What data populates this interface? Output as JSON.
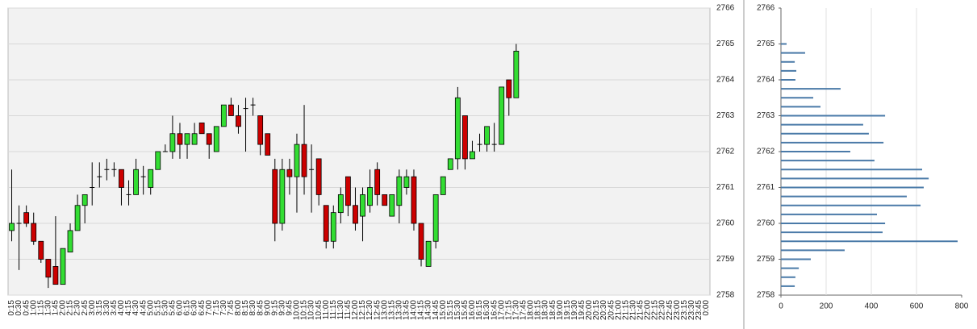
{
  "chart_data": [
    {
      "type": "candlestick",
      "categories": [
        "0:15",
        "0:30",
        "0:45",
        "1:00",
        "1:15",
        "1:30",
        "1:45",
        "2:00",
        "2:15",
        "2:30",
        "2:45",
        "3:00",
        "3:15",
        "3:30",
        "3:45",
        "4:00",
        "4:15",
        "4:30",
        "4:45",
        "5:00",
        "5:15",
        "5:30",
        "5:45",
        "6:00",
        "6:15",
        "6:30",
        "6:45",
        "7:00",
        "7:15",
        "7:30",
        "7:45",
        "8:00",
        "8:15",
        "8:30",
        "8:45",
        "9:00",
        "9:15",
        "9:30",
        "9:45",
        "10:00",
        "10:15",
        "10:30",
        "10:45",
        "11:00",
        "11:15",
        "11:30",
        "11:45",
        "12:00",
        "12:15",
        "12:30",
        "12:45",
        "13:00",
        "13:15",
        "13:30",
        "13:45",
        "14:00",
        "14:15",
        "14:30",
        "14:45",
        "15:00",
        "15:15",
        "15:30",
        "15:45",
        "16:00",
        "16:15",
        "16:30",
        "16:45",
        "17:00",
        "17:15",
        "17:30",
        "17:45",
        "18:00",
        "18:15",
        "18:30",
        "18:45",
        "19:00",
        "19:15",
        "19:30",
        "19:45",
        "20:00",
        "20:15",
        "20:30",
        "20:45",
        "21:00",
        "21:15",
        "21:30",
        "21:45",
        "22:00",
        "22:15",
        "22:30",
        "22:45",
        "23:00",
        "23:15",
        "23:30",
        "23:45",
        "0:00"
      ],
      "open": [
        2759.8,
        2760.0,
        2760.3,
        2760.0,
        2759.5,
        2759.0,
        2758.8,
        2758.3,
        2759.2,
        2759.8,
        2760.5,
        2761.0,
        2761.3,
        2761.5,
        2761.5,
        2761.5,
        2760.8,
        2760.8,
        2761.3,
        2761.0,
        2761.5,
        2762.0,
        2762.0,
        2762.5,
        2762.2,
        2762.2,
        2762.8,
        2762.5,
        2762.0,
        2762.7,
        2763.3,
        2763.0,
        2763.2,
        2763.3,
        2763.0,
        2762.5,
        2761.5,
        2760.0,
        2761.5,
        2761.3,
        2762.2,
        2761.5,
        2761.8,
        2760.5,
        2759.5,
        2760.3,
        2761.3,
        2760.5,
        2760.2,
        2760.5,
        2761.5,
        2760.8,
        2760.2,
        2760.5,
        2761.0,
        2761.3,
        2760.0,
        2758.8,
        2759.5,
        2760.8,
        2761.5,
        2761.8,
        2763.0,
        2761.8,
        2762.2,
        2762.2,
        2762.2,
        2762.2,
        2764.0,
        2763.5,
        null,
        null,
        null,
        null,
        null,
        null,
        null,
        null,
        null,
        null,
        null,
        null,
        null,
        null,
        null,
        null,
        null,
        null,
        null,
        null,
        null,
        null,
        null,
        null,
        null,
        null
      ],
      "high": [
        2761.5,
        2760.5,
        2760.5,
        2760.3,
        2759.5,
        2759.0,
        2760.2,
        2759.3,
        2760.0,
        2760.8,
        2760.8,
        2761.7,
        2761.7,
        2761.8,
        2761.7,
        2761.5,
        2761.2,
        2761.8,
        2761.6,
        2761.5,
        2762.0,
        2762.2,
        2763.0,
        2762.8,
        2762.5,
        2762.8,
        2762.8,
        2762.5,
        2762.7,
        2763.3,
        2763.5,
        2763.3,
        2763.5,
        2763.5,
        2763.0,
        2762.5,
        2761.8,
        2761.8,
        2761.8,
        2762.5,
        2763.3,
        2762.2,
        2761.8,
        2760.5,
        2760.5,
        2761.0,
        2761.3,
        2761.0,
        2761.0,
        2761.5,
        2761.7,
        2760.8,
        2760.8,
        2761.5,
        2761.5,
        2761.5,
        2760.0,
        2759.5,
        2760.8,
        2761.3,
        2761.8,
        2763.8,
        2763.0,
        2762.3,
        2762.5,
        2762.7,
        2762.8,
        2763.8,
        2764.0,
        2765.0,
        null,
        null,
        null,
        null,
        null,
        null,
        null,
        null,
        null,
        null,
        null,
        null,
        null,
        null,
        null,
        null,
        null,
        null,
        null,
        null,
        null,
        null,
        null,
        null,
        null,
        null
      ],
      "low": [
        2759.5,
        2758.7,
        2759.9,
        2759.4,
        2758.9,
        2758.2,
        2758.3,
        2758.3,
        2759.2,
        2759.8,
        2760.0,
        2760.5,
        2761.0,
        2761.2,
        2761.3,
        2760.5,
        2760.5,
        2760.8,
        2760.8,
        2760.8,
        2761.5,
        2762.0,
        2761.8,
        2761.8,
        2761.8,
        2762.2,
        2762.5,
        2761.8,
        2762.0,
        2762.7,
        2763.0,
        2762.5,
        2762.0,
        2763.0,
        2761.9,
        2761.9,
        2759.5,
        2759.8,
        2760.8,
        2760.3,
        2760.8,
        2760.3,
        2760.5,
        2759.3,
        2759.3,
        2760.0,
        2760.2,
        2759.8,
        2759.5,
        2760.3,
        2760.5,
        2760.5,
        2760.2,
        2760.0,
        2760.8,
        2759.8,
        2758.8,
        2758.8,
        2759.3,
        2760.8,
        2761.5,
        2761.5,
        2761.5,
        2761.8,
        2762.0,
        2762.0,
        2762.0,
        2762.2,
        2763.0,
        2763.5,
        null,
        null,
        null,
        null,
        null,
        null,
        null,
        null,
        null,
        null,
        null,
        null,
        null,
        null,
        null,
        null,
        null,
        null,
        null,
        null,
        null,
        null,
        null,
        null,
        null,
        null
      ],
      "close": [
        2760.0,
        2760.0,
        2760.0,
        2759.5,
        2759.0,
        2758.5,
        2758.3,
        2759.3,
        2759.8,
        2760.5,
        2760.8,
        2761.0,
        2761.3,
        2761.5,
        2761.5,
        2761.0,
        2760.8,
        2761.5,
        2761.3,
        2761.5,
        2762.0,
        2762.0,
        2762.5,
        2762.2,
        2762.5,
        2762.5,
        2762.5,
        2762.2,
        2762.7,
        2763.3,
        2763.0,
        2762.7,
        2763.2,
        2763.3,
        2762.2,
        2761.9,
        2760.0,
        2761.5,
        2761.3,
        2762.2,
        2761.3,
        2761.5,
        2760.8,
        2759.5,
        2760.3,
        2760.8,
        2760.5,
        2760.0,
        2760.8,
        2761.0,
        2760.8,
        2760.5,
        2760.8,
        2761.3,
        2761.3,
        2760.0,
        2759.0,
        2759.5,
        2760.8,
        2761.3,
        2761.8,
        2763.5,
        2761.8,
        2762.0,
        2762.2,
        2762.7,
        2762.2,
        2763.8,
        2763.5,
        2764.8,
        null,
        null,
        null,
        null,
        null,
        null,
        null,
        null,
        null,
        null,
        null,
        null,
        null,
        null,
        null,
        null,
        null,
        null,
        null,
        null,
        null,
        null,
        null,
        null,
        null,
        null
      ],
      "up_color": "#33dd33",
      "down_color": "#cc0000",
      "ylim": [
        2758,
        2766
      ],
      "yticks": [
        2758,
        2759,
        2760,
        2761,
        2762,
        2763,
        2764,
        2765,
        2766
      ],
      "grid": true
    },
    {
      "type": "bar",
      "orientation": "horizontal",
      "color": "#4a7aa8",
      "y": [
        2765.0,
        2764.75,
        2764.5,
        2764.25,
        2764.0,
        2763.75,
        2763.5,
        2763.25,
        2763.0,
        2762.75,
        2762.5,
        2762.25,
        2762.0,
        2761.75,
        2761.5,
        2761.25,
        2761.0,
        2760.75,
        2760.5,
        2760.25,
        2760.0,
        2759.75,
        2759.5,
        2759.25,
        2759.0,
        2758.75,
        2758.5,
        2758.25
      ],
      "values": [
        25,
        107,
        61,
        68,
        64,
        264,
        143,
        175,
        461,
        364,
        389,
        454,
        307,
        414,
        625,
        654,
        632,
        557,
        618,
        425,
        461,
        450,
        782,
        282,
        132,
        79,
        64,
        61
      ],
      "xlim": [
        0,
        800
      ],
      "xticks": [
        0,
        200,
        400,
        600,
        800
      ],
      "ylim": [
        2758,
        2766
      ],
      "yticks": [
        2758,
        2759,
        2760,
        2761,
        2762,
        2763,
        2764,
        2765,
        2766
      ],
      "grid": true
    }
  ]
}
